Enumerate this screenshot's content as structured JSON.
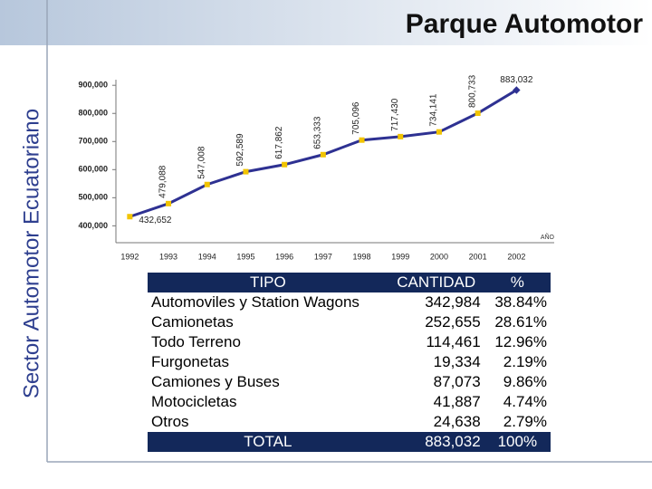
{
  "slide_title": "Parque Automotor",
  "side_title": "Sector Automotor Ecuatoriano",
  "chart_data": {
    "type": "line",
    "categories": [
      "1992",
      "1993",
      "1994",
      "1995",
      "1996",
      "1997",
      "1998",
      "1999",
      "2000",
      "2001",
      "2002"
    ],
    "series": [
      {
        "name": "Parque Automotor",
        "color": "#2e3192",
        "values": [
          432652,
          479088,
          547008,
          592589,
          617862,
          653333,
          705096,
          717430,
          734141,
          800733,
          883032
        ],
        "value_labels": [
          "432,652",
          "479,088",
          "547,008",
          "592,589",
          "617,862",
          "653,333",
          "705,096",
          "717,430",
          "734,141",
          "800,733",
          "883,032"
        ]
      }
    ],
    "x_label": "AÑO",
    "ylim": [
      340000,
      920000
    ],
    "yticks": [
      {
        "value": 400000,
        "label": "400,000"
      },
      {
        "value": 500000,
        "label": "500,000"
      },
      {
        "value": 600000,
        "label": "600,000"
      },
      {
        "value": 700000,
        "label": "700,000"
      },
      {
        "value": 800000,
        "label": "800,000"
      },
      {
        "value": 900000,
        "label": "900,000"
      }
    ],
    "grid": false
  },
  "table": {
    "header": [
      "TIPO",
      "CANTIDAD",
      "%"
    ],
    "rows": [
      [
        "Automoviles y Station Wagons",
        "342,984",
        "38.84%"
      ],
      [
        "Camionetas",
        "252,655",
        "28.61%"
      ],
      [
        "Todo Terreno",
        "114,461",
        "12.96%"
      ],
      [
        "Furgonetas",
        "19,334",
        "2.19%"
      ],
      [
        "Camiones y Buses",
        "87,073",
        "9.86%"
      ],
      [
        "Motocicletas",
        "41,887",
        "4.74%"
      ],
      [
        "Otros",
        "24,638",
        "2.79%"
      ]
    ],
    "total": [
      "TOTAL",
      "883,032",
      "100%"
    ]
  }
}
